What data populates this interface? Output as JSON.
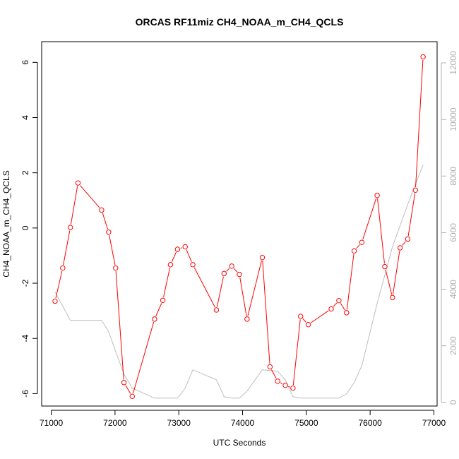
{
  "chart_data": {
    "type": "line",
    "title": "ORCAS RF11miz CH4_NOAA_m_CH4_QCLS",
    "xlabel": "UTC Seconds",
    "ylabel": "CH4_NOAA_m_CH4_QCLS",
    "y2label": "",
    "xlim": [
      70850,
      77050
    ],
    "ylim": [
      -6.45,
      6.75
    ],
    "y2lim": [
      -130,
      12750
    ],
    "x_ticks": [
      71000,
      72000,
      73000,
      74000,
      75000,
      76000,
      77000
    ],
    "y_ticks": [
      -6,
      -4,
      -2,
      0,
      2,
      4,
      6
    ],
    "y2_ticks": [
      0,
      2000,
      4000,
      6000,
      8000,
      10000,
      12000
    ],
    "grid": false,
    "colors": {
      "primary": "#ff0000",
      "secondary": "#bebebe"
    },
    "series": [
      {
        "axis": "left",
        "style": "line-with-open-circles",
        "x": [
          71060,
          71180,
          71300,
          71420,
          71790,
          71900,
          72010,
          72140,
          72270,
          72620,
          72750,
          72870,
          72980,
          73100,
          73220,
          73590,
          73710,
          73830,
          73950,
          74070,
          74310,
          74430,
          74550,
          74670,
          74790,
          74910,
          75030,
          75390,
          75510,
          75630,
          75750,
          75870,
          76110,
          76230,
          76350,
          76470,
          76590,
          76710,
          76830
        ],
        "y": [
          -2.65,
          -1.45,
          0.02,
          1.63,
          0.65,
          -0.15,
          -1.45,
          -5.6,
          -6.1,
          -3.3,
          -2.62,
          -1.33,
          -0.77,
          -0.68,
          -1.33,
          -2.97,
          -1.65,
          -1.38,
          -1.68,
          -3.3,
          -1.07,
          -5.03,
          -5.55,
          -5.7,
          -5.8,
          -3.2,
          -3.5,
          -2.93,
          -2.63,
          -3.07,
          -0.83,
          -0.52,
          1.18,
          -1.4,
          -2.52,
          -0.72,
          -0.4,
          1.37,
          6.2
        ]
      },
      {
        "axis": "right",
        "style": "line",
        "x": [
          71060,
          71300,
          71790,
          71900,
          72010,
          72140,
          72270,
          72620,
          72870,
          72980,
          73100,
          73220,
          73590,
          73710,
          73830,
          73950,
          74070,
          74310,
          74550,
          74670,
          74790,
          74910,
          75030,
          75390,
          75510,
          75630,
          75750,
          75870,
          76110,
          76350,
          76590,
          76830
        ],
        "y": [
          3900,
          2900,
          2900,
          2500,
          1800,
          1000,
          500,
          150,
          150,
          150,
          500,
          1150,
          800,
          200,
          150,
          150,
          400,
          1150,
          1100,
          800,
          200,
          150,
          150,
          150,
          150,
          300,
          700,
          1300,
          3500,
          5500,
          7000,
          8400
        ]
      }
    ]
  }
}
